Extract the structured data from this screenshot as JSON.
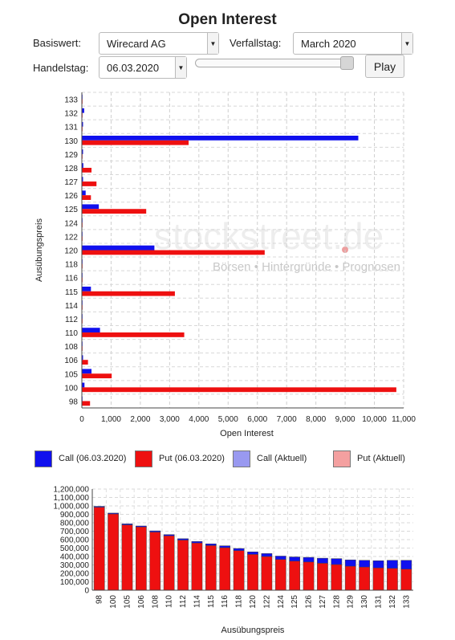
{
  "page": {
    "title": "Open Interest"
  },
  "controls": {
    "basiswert_label": "Basiswert:",
    "basiswert_value": "Wirecard AG",
    "verfallstag_label": "Verfallstag:",
    "verfallstag_value": "March 2020",
    "handelstag_label": "Handelstag:",
    "handelstag_value": "06.03.2020",
    "slider_position": 1.0,
    "play_label": "Play"
  },
  "watermark": {
    "main": "stockstreet.de",
    "sub": "Börsen • Hintergründe • Prognosen"
  },
  "legend": [
    {
      "label": "Call (06.03.2020)",
      "color": "#1010ee"
    },
    {
      "label": "Put (06.03.2020)",
      "color": "#ee1010"
    },
    {
      "label": "Call (Aktuell)",
      "color": "#9999f0"
    },
    {
      "label": "Put (Aktuell)",
      "color": "#f4a0a0"
    }
  ],
  "chart_data": [
    {
      "type": "bar",
      "orientation": "horizontal",
      "categories": [
        "133",
        "132",
        "131",
        "130",
        "129",
        "128",
        "127",
        "126",
        "125",
        "124",
        "122",
        "120",
        "118",
        "116",
        "115",
        "114",
        "112",
        "110",
        "108",
        "106",
        "105",
        "100",
        "98"
      ],
      "series": [
        {
          "name": "Call (06.03.2020)",
          "color": "#1010ee",
          "values": [
            15,
            80,
            40,
            9450,
            40,
            50,
            40,
            130,
            580,
            20,
            10,
            2480,
            20,
            20,
            310,
            20,
            20,
            620,
            20,
            40,
            330,
            90,
            20
          ]
        },
        {
          "name": "Put (06.03.2020)",
          "color": "#ee1010",
          "values": [
            15,
            20,
            10,
            3650,
            10,
            330,
            500,
            310,
            2200,
            10,
            20,
            6250,
            10,
            10,
            3180,
            10,
            20,
            3500,
            10,
            210,
            1020,
            10750,
            280
          ]
        }
      ],
      "xlabel": "Open Interest",
      "ylabel": "Ausübungspreis",
      "xlim": [
        0,
        11000
      ],
      "xticks": [
        "0",
        "1,000",
        "2,000",
        "3,000",
        "4,000",
        "5,000",
        "6,000",
        "7,000",
        "8,000",
        "9,000",
        "10,000",
        "11,000"
      ],
      "grid": true
    },
    {
      "type": "bar",
      "stacked": true,
      "categories": [
        "98",
        "100",
        "105",
        "106",
        "108",
        "110",
        "112",
        "114",
        "115",
        "116",
        "118",
        "120",
        "122",
        "124",
        "125",
        "126",
        "127",
        "128",
        "129",
        "130",
        "131",
        "132",
        "133"
      ],
      "series": [
        {
          "name": "Put",
          "color": "#ee1010",
          "values": [
            985000,
            905000,
            775000,
            750000,
            690000,
            645000,
            595000,
            560000,
            530000,
            505000,
            470000,
            425000,
            400000,
            365000,
            345000,
            335000,
            320000,
            305000,
            285000,
            275000,
            265000,
            260000,
            250000
          ]
        },
        {
          "name": "Call",
          "color": "#1010ee",
          "values": [
            10000,
            10000,
            12000,
            12000,
            14000,
            15000,
            16000,
            18000,
            20000,
            22000,
            25000,
            30000,
            35000,
            40000,
            50000,
            55000,
            60000,
            70000,
            75000,
            80000,
            85000,
            95000,
            105000
          ]
        }
      ],
      "xlabel": "Ausübungspreis",
      "ylim": [
        0,
        1200000
      ],
      "yticks": [
        "0",
        "100,000",
        "200,000",
        "300,000",
        "400,000",
        "500,000",
        "600,000",
        "700,000",
        "800,000",
        "900,000",
        "1,000,000",
        "1,100,000",
        "1,200,000"
      ],
      "grid": true
    }
  ]
}
